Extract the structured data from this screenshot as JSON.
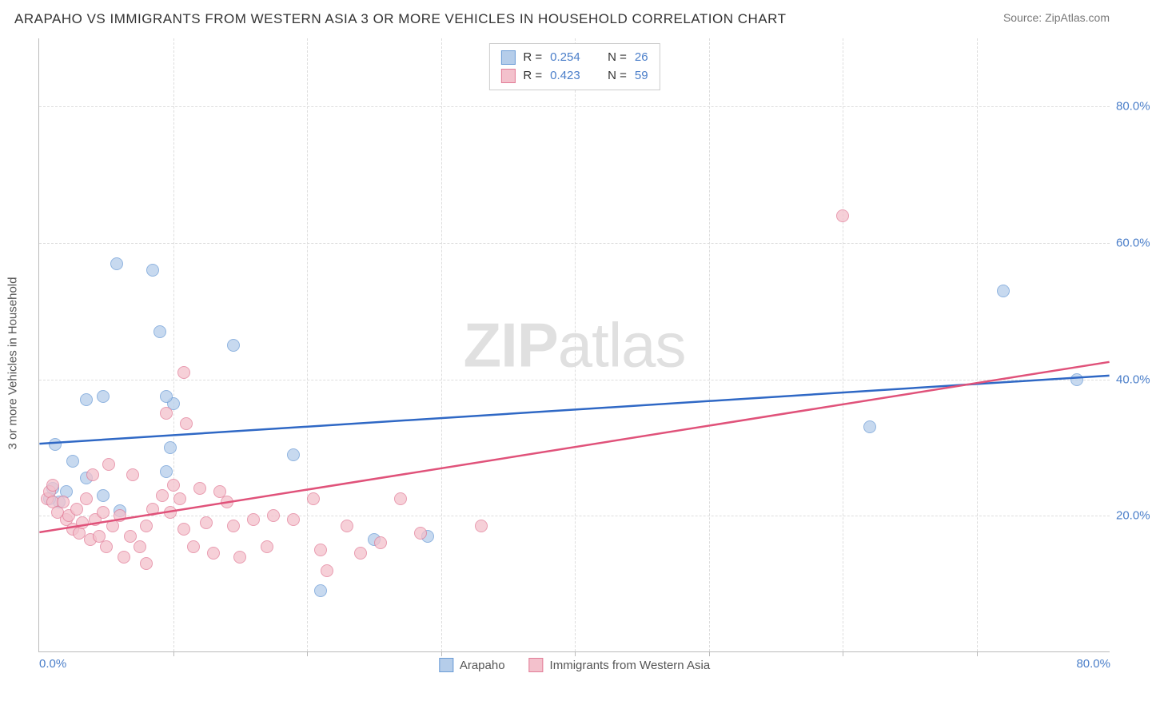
{
  "header": {
    "title": "ARAPAHO VS IMMIGRANTS FROM WESTERN ASIA 3 OR MORE VEHICLES IN HOUSEHOLD CORRELATION CHART",
    "source_prefix": "Source: ",
    "source": "ZipAtlas.com"
  },
  "chart": {
    "type": "scatter",
    "ylabel": "3 or more Vehicles in Household",
    "watermark_bold": "ZIP",
    "watermark_light": "atlas",
    "xlim": [
      0,
      80
    ],
    "ylim": [
      0,
      90
    ],
    "yticks": [
      {
        "v": 20,
        "label": "20.0%"
      },
      {
        "v": 40,
        "label": "40.0%"
      },
      {
        "v": 60,
        "label": "60.0%"
      },
      {
        "v": 80,
        "label": "80.0%"
      }
    ],
    "xticks": [
      {
        "v": 0,
        "label": "0.0%",
        "cls": "left"
      },
      {
        "v": 80,
        "label": "80.0%",
        "cls": "right"
      }
    ],
    "xgrid": [
      10,
      20,
      30,
      40,
      50,
      60,
      70
    ],
    "background_color": "#ffffff",
    "grid_color": "#dddddd",
    "axis_color": "#bbbbbb",
    "tick_label_color": "#4a7ec9",
    "series": [
      {
        "name": "Arapaho",
        "marker_fill": "#b5cdea",
        "marker_stroke": "#6b9cd6",
        "marker_size": 16,
        "line_color": "#2f68c5",
        "line_width": 2.5,
        "R": "0.254",
        "N": "26",
        "trend": {
          "x1": 0,
          "y1": 30.5,
          "x2": 80,
          "y2": 40.5
        },
        "points": [
          [
            1.2,
            30.5
          ],
          [
            2.5,
            28.0
          ],
          [
            5.8,
            57.0
          ],
          [
            8.5,
            56.0
          ],
          [
            3.5,
            37.0
          ],
          [
            4.8,
            37.5
          ],
          [
            10.0,
            36.5
          ],
          [
            9.0,
            47.0
          ],
          [
            14.5,
            45.0
          ],
          [
            9.5,
            37.5
          ],
          [
            2.0,
            23.5
          ],
          [
            1.0,
            24.0
          ],
          [
            1.5,
            22.0
          ],
          [
            4.8,
            23.0
          ],
          [
            0.8,
            22.5
          ],
          [
            6.0,
            20.8
          ],
          [
            3.5,
            25.5
          ],
          [
            9.8,
            30.0
          ],
          [
            9.5,
            26.5
          ],
          [
            19.0,
            29.0
          ],
          [
            25.0,
            16.5
          ],
          [
            21.0,
            9.0
          ],
          [
            29.0,
            17.0
          ],
          [
            62.0,
            33.0
          ],
          [
            72.0,
            53.0
          ],
          [
            77.5,
            40.0
          ]
        ]
      },
      {
        "name": "Immigrants from Western Asia",
        "marker_fill": "#f3c1cc",
        "marker_stroke": "#e27c97",
        "marker_size": 16,
        "line_color": "#e0527a",
        "line_width": 2.5,
        "R": "0.423",
        "N": "59",
        "trend": {
          "x1": 0,
          "y1": 17.5,
          "x2": 80,
          "y2": 42.5
        },
        "points": [
          [
            0.6,
            22.5
          ],
          [
            0.8,
            23.5
          ],
          [
            1.0,
            22.0
          ],
          [
            1.0,
            24.5
          ],
          [
            1.4,
            20.5
          ],
          [
            1.8,
            22.0
          ],
          [
            2.0,
            19.5
          ],
          [
            2.2,
            20.0
          ],
          [
            2.5,
            18.0
          ],
          [
            2.8,
            21.0
          ],
          [
            3.0,
            17.5
          ],
          [
            3.2,
            19.0
          ],
          [
            3.5,
            22.5
          ],
          [
            3.8,
            16.5
          ],
          [
            4.0,
            26.0
          ],
          [
            4.2,
            19.5
          ],
          [
            4.5,
            17.0
          ],
          [
            4.8,
            20.5
          ],
          [
            5.0,
            15.5
          ],
          [
            5.2,
            27.5
          ],
          [
            5.5,
            18.5
          ],
          [
            6.0,
            20.0
          ],
          [
            6.3,
            14.0
          ],
          [
            6.8,
            17.0
          ],
          [
            7.0,
            26.0
          ],
          [
            7.5,
            15.5
          ],
          [
            8.0,
            18.5
          ],
          [
            8.0,
            13.0
          ],
          [
            8.5,
            21.0
          ],
          [
            9.2,
            23.0
          ],
          [
            9.5,
            35.0
          ],
          [
            9.8,
            20.5
          ],
          [
            10.0,
            24.5
          ],
          [
            10.5,
            22.5
          ],
          [
            10.8,
            18.0
          ],
          [
            11.0,
            33.5
          ],
          [
            11.5,
            15.5
          ],
          [
            10.8,
            41.0
          ],
          [
            12.0,
            24.0
          ],
          [
            12.5,
            19.0
          ],
          [
            13.0,
            14.5
          ],
          [
            13.5,
            23.5
          ],
          [
            14.0,
            22.0
          ],
          [
            14.5,
            18.5
          ],
          [
            15.0,
            14.0
          ],
          [
            16.0,
            19.5
          ],
          [
            17.0,
            15.5
          ],
          [
            17.5,
            20.0
          ],
          [
            19.0,
            19.5
          ],
          [
            20.5,
            22.5
          ],
          [
            21.0,
            15.0
          ],
          [
            21.5,
            12.0
          ],
          [
            23.0,
            18.5
          ],
          [
            24.0,
            14.5
          ],
          [
            25.5,
            16.0
          ],
          [
            27.0,
            22.5
          ],
          [
            28.5,
            17.5
          ],
          [
            33.0,
            18.5
          ],
          [
            60.0,
            64.0
          ]
        ]
      }
    ],
    "legend_labels": {
      "R": "R =",
      "N": "N ="
    }
  }
}
